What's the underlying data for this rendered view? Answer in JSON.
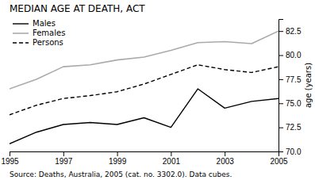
{
  "chart_data": {
    "type": "line",
    "title": "MEDIAN AGE AT DEATH, ACT",
    "y_label": "age (years)",
    "source": "Source: Deaths, Australia, 2005 (cat. no. 3302.0).  Data cubes.",
    "x": [
      1995,
      1996,
      1997,
      1998,
      1999,
      2000,
      2001,
      2002,
      2003,
      2004,
      2005
    ],
    "series": [
      {
        "name": "Males",
        "color": "#000000",
        "line_style": "solid",
        "values": [
          70.8,
          72.0,
          72.8,
          73.0,
          72.8,
          73.5,
          72.5,
          76.5,
          74.5,
          75.2,
          75.5
        ]
      },
      {
        "name": "Females",
        "color": "#aaaaaa",
        "line_style": "solid",
        "values": [
          76.5,
          77.5,
          78.8,
          79.0,
          79.5,
          79.8,
          80.5,
          81.3,
          81.4,
          81.2,
          82.5
        ]
      },
      {
        "name": "Persons",
        "color": "#000000",
        "line_style": "dashed",
        "values": [
          73.8,
          74.8,
          75.5,
          75.8,
          76.2,
          77.0,
          78.0,
          79.0,
          78.5,
          78.2,
          78.8
        ]
      }
    ],
    "xlim": [
      1995,
      2005
    ],
    "xticks": [
      1995,
      1997,
      1999,
      2001,
      2003,
      2005
    ],
    "ylim": [
      70.0,
      83.75
    ],
    "yticks": [
      {
        "value": 70.0,
        "label": "70.0"
      },
      72.5,
      {
        "value": 75.0,
        "label": "75.0"
      },
      77.5,
      {
        "value": 80.0,
        "label": "80.0"
      },
      82.5
    ],
    "grid": false,
    "legend": "upper left"
  }
}
